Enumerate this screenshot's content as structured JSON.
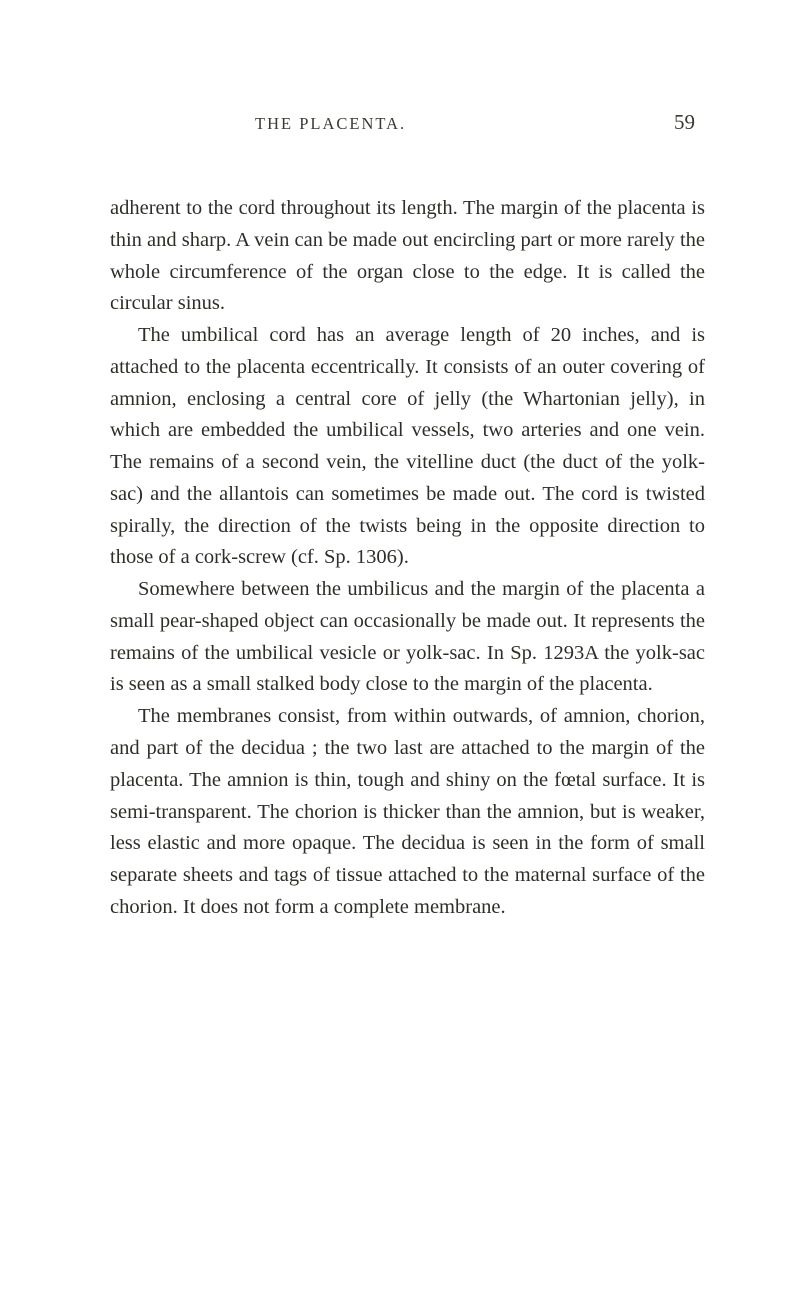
{
  "header": {
    "title": "THE PLACENTA.",
    "page_number": "59"
  },
  "paragraphs": [
    "adherent to the cord throughout its length. The margin of the placenta is thin and sharp. A vein can be made out encircling part or more rarely the whole circumference of the organ close to the edge. It is called the circular sinus.",
    "The umbilical cord has an average length of 20 inches, and is attached to the placenta eccentrically. It consists of an outer covering of amnion, enclosing a central core of jelly (the Whartonian jelly), in which are embedded the umbilical vessels, two arteries and one vein. The remains of a second vein, the vitelline duct (the duct of the yolk-sac) and the allantois can sometimes be made out. The cord is twisted spirally, the direction of the twists being in the opposite direction to those of a cork-screw (cf. Sp. 1306).",
    "Somewhere between the umbilicus and the margin of the placenta a small pear-shaped object can occasionally be made out. It represents the remains of the umbilical vesicle or yolk-sac. In Sp. 1293A the yolk-sac is seen as a small stalked body close to the margin of the placenta.",
    "The membranes consist, from within outwards, of amnion, chorion, and part of the decidua ; the two last are attached to the margin of the placenta. The amnion is thin, tough and shiny on the fœtal surface. It is semi-transparent. The chorion is thicker than the amnion, but is weaker, less elastic and more opaque. The decidua is seen in the form of small separate sheets and tags of tissue attached to the maternal surface of the chorion. It does not form a complete membrane."
  ],
  "colors": {
    "background": "#ffffff",
    "text": "#2e2e28",
    "header_text": "#3a3a33"
  },
  "typography": {
    "body_fontsize": 20.5,
    "header_title_fontsize": 16.5,
    "page_number_fontsize": 21,
    "line_height": 1.55,
    "font_family": "Georgia, Times New Roman, serif"
  }
}
